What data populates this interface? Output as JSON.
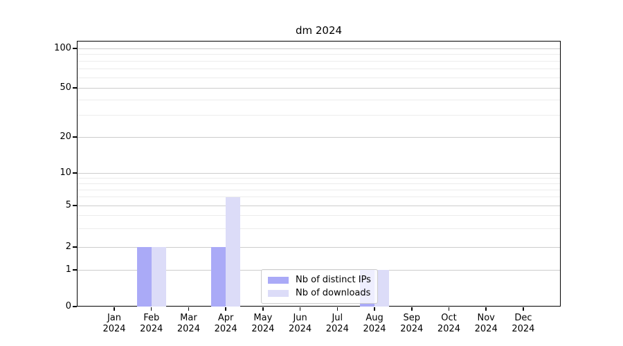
{
  "chart_data": {
    "type": "bar",
    "title": "dm 2024",
    "x_axis": {
      "months": [
        "Jan",
        "Feb",
        "Mar",
        "Apr",
        "May",
        "Jun",
        "Jul",
        "Aug",
        "Sep",
        "Oct",
        "Nov",
        "Dec"
      ],
      "year": "2024"
    },
    "y_axis": {
      "scale": "log-like with 0 baseline",
      "tick_values": [
        0,
        1,
        2,
        5,
        10,
        20,
        50,
        100
      ],
      "minor_gridline_values": [
        3,
        4,
        6,
        7,
        8,
        9,
        30,
        40,
        60,
        70,
        80,
        90
      ],
      "ylim": [
        0,
        100
      ]
    },
    "series": [
      {
        "name": "Nb of distinct IPs",
        "color": "#aaaaf7",
        "values": [
          0,
          2,
          0,
          2,
          0,
          0,
          0,
          1,
          0,
          0,
          0,
          0
        ]
      },
      {
        "name": "Nb of downloads",
        "color": "#dcdcf8",
        "values": [
          0,
          2,
          0,
          6,
          0,
          0,
          0,
          1,
          0,
          0,
          0,
          0
        ]
      }
    ],
    "legend": {
      "position": "bottom-center",
      "border_color": "#cbcbcb",
      "background": "rgba(255,255,255,0.8)"
    },
    "grid": {
      "major_color": "#cccccc",
      "minor_color": "#ececec"
    }
  }
}
